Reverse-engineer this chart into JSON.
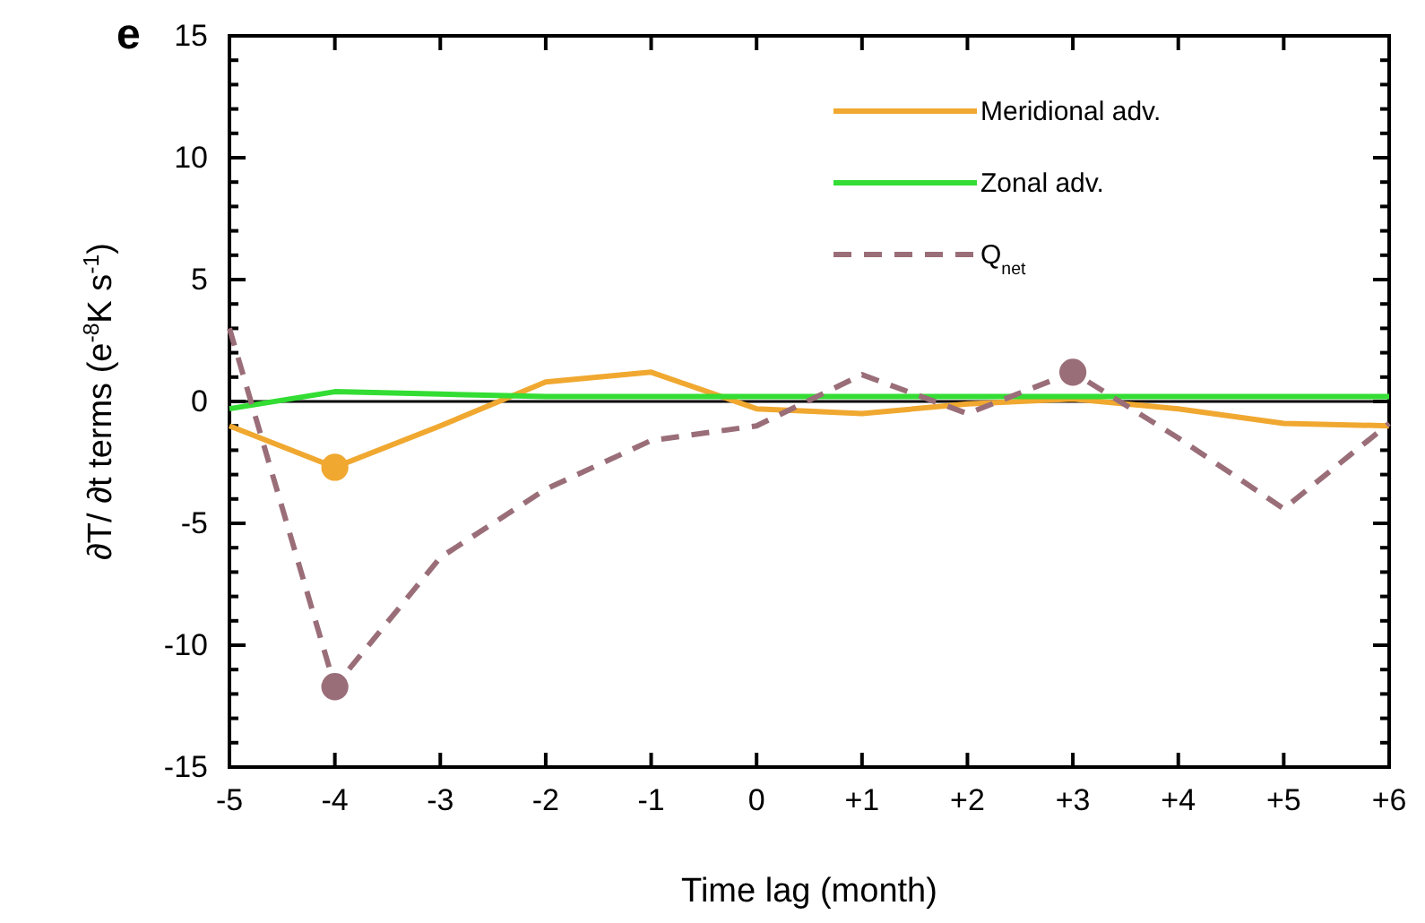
{
  "chart_data": {
    "type": "line",
    "categories": [
      "-5",
      "-4",
      "-3",
      "-2",
      "-1",
      "0",
      "+1",
      "+2",
      "+3",
      "+4",
      "+5",
      "+6"
    ],
    "xlabel": "Time lag (month)",
    "ylabel": "∂T/ ∂t terms (e$^{-8}$K s$^{-1}$)",
    "ylim": [
      -15,
      15
    ],
    "yticks": [
      -15,
      -10,
      -5,
      0,
      5,
      10,
      15
    ],
    "annotations": [
      "e"
    ],
    "ref_lines": [
      {
        "axis": "y",
        "value": 0,
        "color": "#000000"
      }
    ],
    "legend": "top right",
    "grid": false,
    "series": [
      {
        "name": "Meridional adv.",
        "color": "#f0a830",
        "line_style": "solid",
        "values": [
          -1.0,
          -2.7,
          -1.0,
          0.8,
          1.2,
          -0.3,
          -0.5,
          -0.1,
          0.1,
          -0.3,
          -0.9,
          -1.0
        ]
      },
      {
        "name": "Zonal adv.",
        "color": "#33dd33",
        "line_style": "solid",
        "values": [
          -0.3,
          0.4,
          0.3,
          0.2,
          0.2,
          0.2,
          0.2,
          0.2,
          0.2,
          0.2,
          0.2,
          0.2
        ]
      },
      {
        "name": "Q$_{net}$",
        "color": "#9a6e78",
        "line_style": "dashed",
        "values": [
          3.0,
          -11.7,
          -6.4,
          -3.6,
          -1.6,
          -1.0,
          1.1,
          -0.5,
          1.2,
          -1.5,
          -4.4,
          -0.9
        ]
      },
      {
        "type": "scatter",
        "color": "#f0a830",
        "marker": "circle",
        "x": [
          "-4"
        ],
        "values": [
          -2.7
        ]
      },
      {
        "type": "scatter",
        "color": "#9a6e78",
        "marker": "circle",
        "x": [
          "-4",
          "+3"
        ],
        "values": [
          -11.7,
          1.2
        ]
      }
    ]
  }
}
